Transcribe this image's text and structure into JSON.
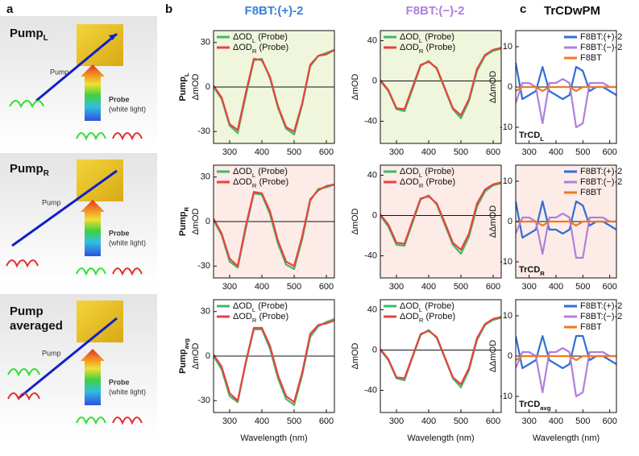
{
  "panel_labels": [
    "a",
    "b",
    "c"
  ],
  "column_titles": [
    {
      "text": "F8BT:(+)-2",
      "color": "#3a7fd8"
    },
    {
      "text": "F8BT:(−)-2",
      "color": "#b07fdd"
    },
    {
      "text": "TrCDwPM",
      "color": "#111111"
    }
  ],
  "diagrams": [
    {
      "title": [
        "Pump",
        "L"
      ],
      "pump": "Pump",
      "probe": "Probe",
      "probe_note": "(white light)"
    },
    {
      "title": [
        "Pump",
        "R"
      ],
      "pump": "Pump",
      "probe": "Probe",
      "probe_note": "(white light)"
    },
    {
      "title_lines": [
        "Pump",
        "averaged"
      ],
      "pump": "Pump",
      "probe": "Probe",
      "probe_note": "(white light)"
    }
  ],
  "chart_data": [
    {
      "type": "line",
      "row_label": [
        "Pump",
        "L"
      ],
      "ylabel": "ΔmOD",
      "background": "#eff6dc",
      "zero_line": true,
      "legend": "upper left",
      "x": [
        250,
        275,
        300,
        325,
        350,
        375,
        400,
        425,
        450,
        475,
        500,
        525,
        550,
        575,
        600,
        625
      ],
      "xlim": [
        250,
        625
      ],
      "xticks": [
        300,
        400,
        500,
        600
      ],
      "ylim": [
        -38,
        38
      ],
      "yticks": [
        -30,
        0,
        30
      ],
      "series": [
        {
          "name": [
            "ΔOD",
            "L",
            " (Probe)"
          ],
          "color": "#3fb86a",
          "values": [
            0,
            -8,
            -26,
            -31,
            -6,
            18,
            19,
            6,
            -14,
            -28,
            -32,
            -12,
            14,
            21,
            23,
            25
          ]
        },
        {
          "name": [
            "ΔOD",
            "R",
            " (Probe)"
          ],
          "color": "#e8423f",
          "values": [
            1,
            -7,
            -25,
            -29,
            -4,
            19,
            18,
            7,
            -13,
            -27,
            -30,
            -11,
            15,
            21,
            22,
            25
          ]
        }
      ]
    },
    {
      "type": "line",
      "ylabel": "ΔmOD",
      "background": "#eff6dc",
      "zero_line": true,
      "legend": "upper left",
      "x": [
        250,
        275,
        300,
        325,
        350,
        375,
        400,
        425,
        450,
        475,
        500,
        525,
        550,
        575,
        600,
        625
      ],
      "xlim": [
        250,
        625
      ],
      "xticks": [
        300,
        400,
        500,
        600
      ],
      "ylim": [
        -62,
        50
      ],
      "yticks": [
        -40,
        0,
        40
      ],
      "series": [
        {
          "name": [
            "ΔOD",
            "L",
            " (Probe)"
          ],
          "color": "#3fb86a",
          "values": [
            0,
            -10,
            -28,
            -30,
            -8,
            15,
            20,
            12,
            -8,
            -28,
            -37,
            -20,
            10,
            25,
            30,
            32
          ]
        },
        {
          "name": [
            "ΔOD",
            "R",
            " (Probe)"
          ],
          "color": "#e8423f",
          "values": [
            1,
            -9,
            -27,
            -28,
            -6,
            16,
            19,
            13,
            -7,
            -27,
            -34,
            -18,
            12,
            26,
            31,
            33
          ]
        }
      ]
    },
    {
      "type": "line",
      "annotation": [
        "TrCD",
        "L"
      ],
      "ylabel": "ΔΔmOD",
      "background": "#ffffff",
      "zero_line": true,
      "legend": "upper right",
      "x": [
        250,
        275,
        300,
        325,
        350,
        375,
        400,
        425,
        450,
        475,
        500,
        525,
        550,
        575,
        600,
        625
      ],
      "xlim": [
        250,
        625
      ],
      "xticks": [
        300,
        400,
        500,
        600
      ],
      "ylim": [
        -14,
        14
      ],
      "yticks": [
        -10,
        0,
        10
      ],
      "series": [
        {
          "name": "F8BT:(+)-2",
          "color": "#2f6fd6",
          "values": [
            6,
            -3,
            -2,
            -1,
            5,
            -1,
            -2,
            -3,
            -2,
            5,
            4,
            -1,
            0,
            0,
            -1,
            -2
          ]
        },
        {
          "name": "F8BT:(−)-2",
          "color": "#b07fdd",
          "values": [
            -4,
            1,
            1,
            0,
            -9,
            1,
            1,
            2,
            1,
            -10,
            -9,
            1,
            1,
            1,
            0,
            0
          ]
        },
        {
          "name": "F8BT",
          "color": "#f07a22",
          "values": [
            -1,
            0,
            0,
            0,
            -1,
            0,
            0,
            0,
            0,
            -1,
            0,
            0,
            0,
            0,
            0,
            0
          ]
        }
      ]
    },
    {
      "type": "line",
      "row_label": [
        "Pump",
        "R"
      ],
      "ylabel": "ΔmOD",
      "background": "#fcebe6",
      "zero_line": true,
      "legend": "upper left",
      "x": [
        250,
        275,
        300,
        325,
        350,
        375,
        400,
        425,
        450,
        475,
        500,
        525,
        550,
        575,
        600,
        625
      ],
      "xlim": [
        250,
        625
      ],
      "xticks": [
        300,
        400,
        500,
        600
      ],
      "ylim": [
        -38,
        38
      ],
      "yticks": [
        -30,
        0,
        30
      ],
      "series": [
        {
          "name": [
            "ΔOD",
            "L",
            " (Probe)"
          ],
          "color": "#3fb86a",
          "values": [
            1,
            -9,
            -27,
            -31,
            -5,
            19,
            18,
            5,
            -15,
            -29,
            -32,
            -12,
            14,
            22,
            23,
            25
          ]
        },
        {
          "name": [
            "ΔOD",
            "R",
            " (Probe)"
          ],
          "color": "#e8423f",
          "values": [
            2,
            -8,
            -25,
            -30,
            -3,
            20,
            19,
            7,
            -13,
            -27,
            -30,
            -10,
            15,
            21,
            24,
            25
          ]
        }
      ]
    },
    {
      "type": "line",
      "ylabel": "ΔmOD",
      "background": "#fcebe6",
      "zero_line": true,
      "legend": "upper left",
      "x": [
        250,
        275,
        300,
        325,
        350,
        375,
        400,
        425,
        450,
        475,
        500,
        525,
        550,
        575,
        600,
        625
      ],
      "xlim": [
        250,
        625
      ],
      "xticks": [
        300,
        400,
        500,
        600
      ],
      "ylim": [
        -62,
        50
      ],
      "yticks": [
        -40,
        0,
        40
      ],
      "series": [
        {
          "name": [
            "ΔOD",
            "L",
            " (Probe)"
          ],
          "color": "#3fb86a",
          "values": [
            0,
            -11,
            -29,
            -30,
            -7,
            16,
            20,
            11,
            -9,
            -29,
            -38,
            -21,
            9,
            24,
            30,
            32
          ]
        },
        {
          "name": [
            "ΔOD",
            "R",
            " (Probe)"
          ],
          "color": "#e8423f",
          "values": [
            1,
            -9,
            -27,
            -28,
            -5,
            17,
            19,
            12,
            -7,
            -27,
            -34,
            -18,
            12,
            26,
            31,
            33
          ]
        }
      ]
    },
    {
      "type": "line",
      "annotation": [
        "TrCD",
        "R"
      ],
      "ylabel": "ΔΔmOD",
      "background": "#fcebe6",
      "zero_line": true,
      "legend": "upper right",
      "x": [
        250,
        275,
        300,
        325,
        350,
        375,
        400,
        425,
        450,
        475,
        500,
        525,
        550,
        575,
        600,
        625
      ],
      "xlim": [
        250,
        625
      ],
      "xticks": [
        300,
        400,
        500,
        600
      ],
      "ylim": [
        -14,
        14
      ],
      "yticks": [
        -10,
        0,
        10
      ],
      "series": [
        {
          "name": "F8BT:(+)-2",
          "color": "#2f6fd6",
          "values": [
            5,
            -4,
            -3,
            -2,
            5,
            -2,
            -2,
            -3,
            -2,
            5,
            4,
            -1,
            0,
            0,
            -1,
            -2
          ]
        },
        {
          "name": "F8BT:(−)-2",
          "color": "#b07fdd",
          "values": [
            -3,
            1,
            1,
            0,
            -8,
            1,
            1,
            2,
            1,
            -9,
            -9,
            1,
            1,
            1,
            0,
            0
          ]
        },
        {
          "name": "F8BT",
          "color": "#f07a22",
          "values": [
            0,
            0,
            0,
            0,
            -1,
            0,
            0,
            0,
            0,
            -1,
            0,
            0,
            0,
            0,
            0,
            0
          ]
        }
      ]
    },
    {
      "type": "line",
      "row_label": [
        "Pump",
        "avg"
      ],
      "ylabel": "ΔmOD",
      "xlabel": "Wavelength (nm)",
      "background": "#ffffff",
      "zero_line": true,
      "legend": "upper left",
      "x": [
        250,
        275,
        300,
        325,
        350,
        375,
        400,
        425,
        450,
        475,
        500,
        525,
        550,
        575,
        600,
        625
      ],
      "xlim": [
        250,
        625
      ],
      "xticks": [
        300,
        400,
        500,
        600
      ],
      "ylim": [
        -38,
        38
      ],
      "yticks": [
        -30,
        0,
        30
      ],
      "series": [
        {
          "name": [
            "ΔOD",
            "L",
            " (Probe)"
          ],
          "color": "#3fb86a",
          "values": [
            0,
            -9,
            -27,
            -31,
            -5,
            18,
            18,
            5,
            -15,
            -29,
            -33,
            -13,
            13,
            20,
            23,
            25
          ]
        },
        {
          "name": [
            "ΔOD",
            "R",
            " (Probe)"
          ],
          "color": "#e8423f",
          "values": [
            1,
            -7,
            -25,
            -30,
            -4,
            19,
            19,
            7,
            -13,
            -27,
            -31,
            -11,
            15,
            21,
            22,
            24
          ]
        }
      ]
    },
    {
      "type": "line",
      "ylabel": "ΔmOD",
      "xlabel": "Wavelength (nm)",
      "background": "#ffffff",
      "zero_line": true,
      "legend": "upper left",
      "x": [
        250,
        275,
        300,
        325,
        350,
        375,
        400,
        425,
        450,
        475,
        500,
        525,
        550,
        575,
        600,
        625
      ],
      "xlim": [
        250,
        625
      ],
      "xticks": [
        300,
        400,
        500,
        600
      ],
      "ylim": [
        -62,
        50
      ],
      "yticks": [
        -40,
        0,
        40
      ],
      "series": [
        {
          "name": [
            "ΔOD",
            "L",
            " (Probe)"
          ],
          "color": "#3fb86a",
          "values": [
            0,
            -10,
            -28,
            -30,
            -7,
            15,
            20,
            12,
            -8,
            -28,
            -37,
            -20,
            10,
            25,
            30,
            32
          ]
        },
        {
          "name": [
            "ΔOD",
            "R",
            " (Probe)"
          ],
          "color": "#e8423f",
          "values": [
            1,
            -9,
            -27,
            -28,
            -6,
            16,
            19,
            13,
            -7,
            -27,
            -34,
            -18,
            12,
            26,
            31,
            33
          ]
        }
      ]
    },
    {
      "type": "line",
      "annotation": [
        "TrCD",
        "avg"
      ],
      "ylabel": "ΔΔmOD",
      "xlabel": "Wavelength (nm)",
      "background": "#ffffff",
      "zero_line": true,
      "legend": "upper right",
      "x": [
        250,
        275,
        300,
        325,
        350,
        375,
        400,
        425,
        450,
        475,
        500,
        525,
        550,
        575,
        600,
        625
      ],
      "xlim": [
        250,
        625
      ],
      "xticks": [
        300,
        400,
        500,
        600
      ],
      "ylim": [
        -14,
        14
      ],
      "yticks": [
        -10,
        0,
        10
      ],
      "series": [
        {
          "name": "F8BT:(+)-2",
          "color": "#2f6fd6",
          "values": [
            5,
            -3,
            -2,
            -1,
            5,
            -1,
            -2,
            -3,
            -2,
            5,
            5,
            -1,
            0,
            0,
            -1,
            -2
          ]
        },
        {
          "name": "F8BT:(−)-2",
          "color": "#b07fdd",
          "values": [
            -3,
            1,
            1,
            0,
            -9,
            1,
            1,
            2,
            1,
            -10,
            -9,
            1,
            1,
            1,
            0,
            0
          ]
        },
        {
          "name": "F8BT",
          "color": "#f07a22",
          "values": [
            -1,
            0,
            0,
            0,
            0,
            0,
            0,
            0,
            0,
            -1,
            0,
            0,
            0,
            0,
            0,
            0
          ]
        }
      ]
    }
  ]
}
